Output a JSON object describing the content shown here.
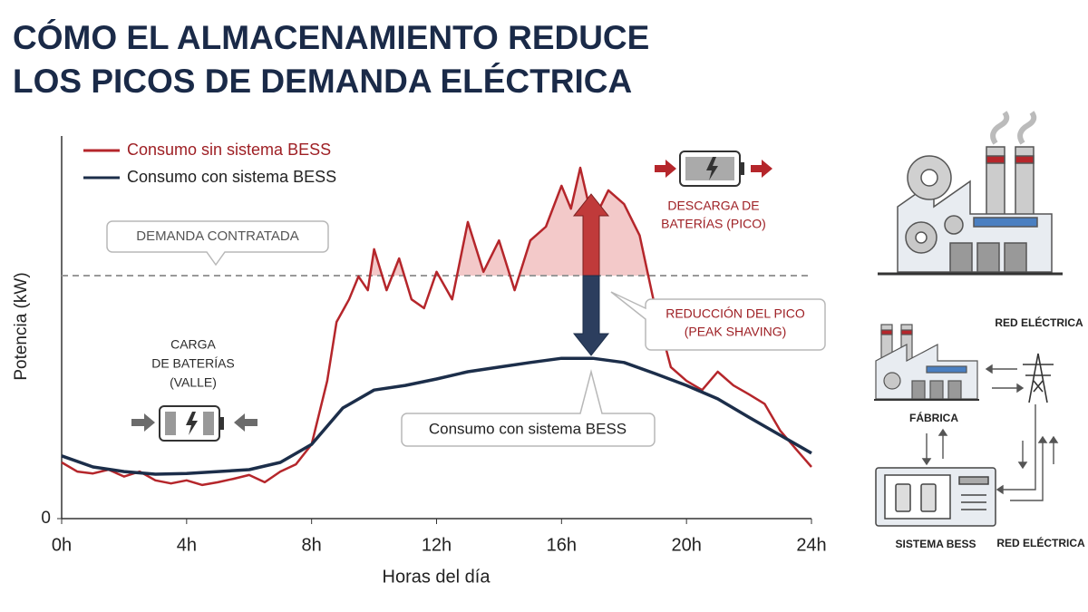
{
  "chart_data": {
    "type": "line",
    "title": [
      "CÓMO EL ALMACENAMIENTO REDUCE",
      "LOS PICOS DE DEMANDA ELÉCTRICA"
    ],
    "x_label": "Horas del día",
    "y_label": "Potencia (kW)",
    "xlim": [
      0,
      24
    ],
    "xticks": [
      {
        "value": 0,
        "label": "0h"
      },
      {
        "value": 4,
        "label": "4h"
      },
      {
        "value": 8,
        "label": "8h"
      },
      {
        "value": 12,
        "label": "12h"
      },
      {
        "value": 16,
        "label": "16h"
      },
      {
        "value": 20,
        "label": "20h"
      },
      {
        "value": 24,
        "label": "24h"
      }
    ],
    "ylim": [
      0,
      100
    ],
    "yticks": [
      0
    ],
    "series": [
      {
        "name": "Consumo sin sistema BESS",
        "color": "#b5262b",
        "x": [
          0,
          0.5,
          1,
          1.5,
          2,
          2.5,
          3,
          3.5,
          4,
          4.5,
          5,
          5.5,
          6,
          6.5,
          7,
          7.5,
          8,
          8.5,
          8.8,
          9.2,
          9.5,
          9.8,
          10,
          10.4,
          10.8,
          11.2,
          11.6,
          12,
          12.5,
          13,
          13.5,
          14,
          14.5,
          15,
          15.5,
          16,
          16.3,
          16.6,
          17,
          17.5,
          18,
          18.5,
          19,
          19.5,
          20,
          20.5,
          21,
          21.5,
          22,
          22.5,
          23,
          23.5,
          24
        ],
        "values": [
          14.7,
          12.3,
          11.8,
          12.8,
          11,
          12.3,
          10,
          9.2,
          10,
          8.8,
          9.5,
          10.4,
          11.4,
          9.5,
          12.3,
          14.2,
          19.4,
          36,
          51.4,
          57.3,
          63.3,
          59.7,
          70.4,
          59.7,
          68,
          57.3,
          55,
          64.5,
          57.3,
          77.5,
          64.5,
          72.7,
          59.7,
          72.7,
          76.3,
          87,
          81,
          91.7,
          77.5,
          85.8,
          82.2,
          74,
          55,
          39.6,
          36,
          33.6,
          38.4,
          34.8,
          32.5,
          30,
          23,
          18.2,
          13.5
        ]
      },
      {
        "name": "Consumo con sistema BESS",
        "color": "#1c2e4a",
        "x": [
          0,
          1,
          2,
          3,
          4,
          5,
          6,
          7,
          8,
          9,
          10,
          11,
          12,
          13,
          14,
          15,
          16,
          17,
          18,
          19,
          20,
          21,
          22,
          23,
          24
        ],
        "values": [
          16.4,
          13.5,
          12.3,
          11.6,
          11.8,
          12.3,
          12.8,
          14.7,
          19.4,
          28.9,
          33.6,
          34.8,
          36.5,
          38.4,
          39.6,
          40.8,
          41.9,
          41.9,
          40.8,
          37.9,
          34.8,
          31.3,
          26.5,
          21.8,
          17.1
        ]
      }
    ],
    "contracted_demand": {
      "label": "DEMANDA CONTRATADA",
      "value": 63.5
    },
    "peak_area_color": "#f3c9c9",
    "annotations": {
      "charge": [
        "CARGA",
        "DE BATERÍAS",
        "(VALLE)"
      ],
      "discharge": [
        "DESCARGA DE",
        "BATERÍAS (PICO)"
      ],
      "reduction": [
        "REDUCCIÓN DEL PICO",
        "(PEAK SHAVING)"
      ],
      "bess_callout": "Consumo con sistema BESS"
    }
  },
  "diagram": {
    "grid_top": "RED ELÉCTRICA",
    "factory": "FÁBRICA",
    "bess": "SISTEMA BESS",
    "grid_bottom": "RED ELÉCTRICA"
  }
}
